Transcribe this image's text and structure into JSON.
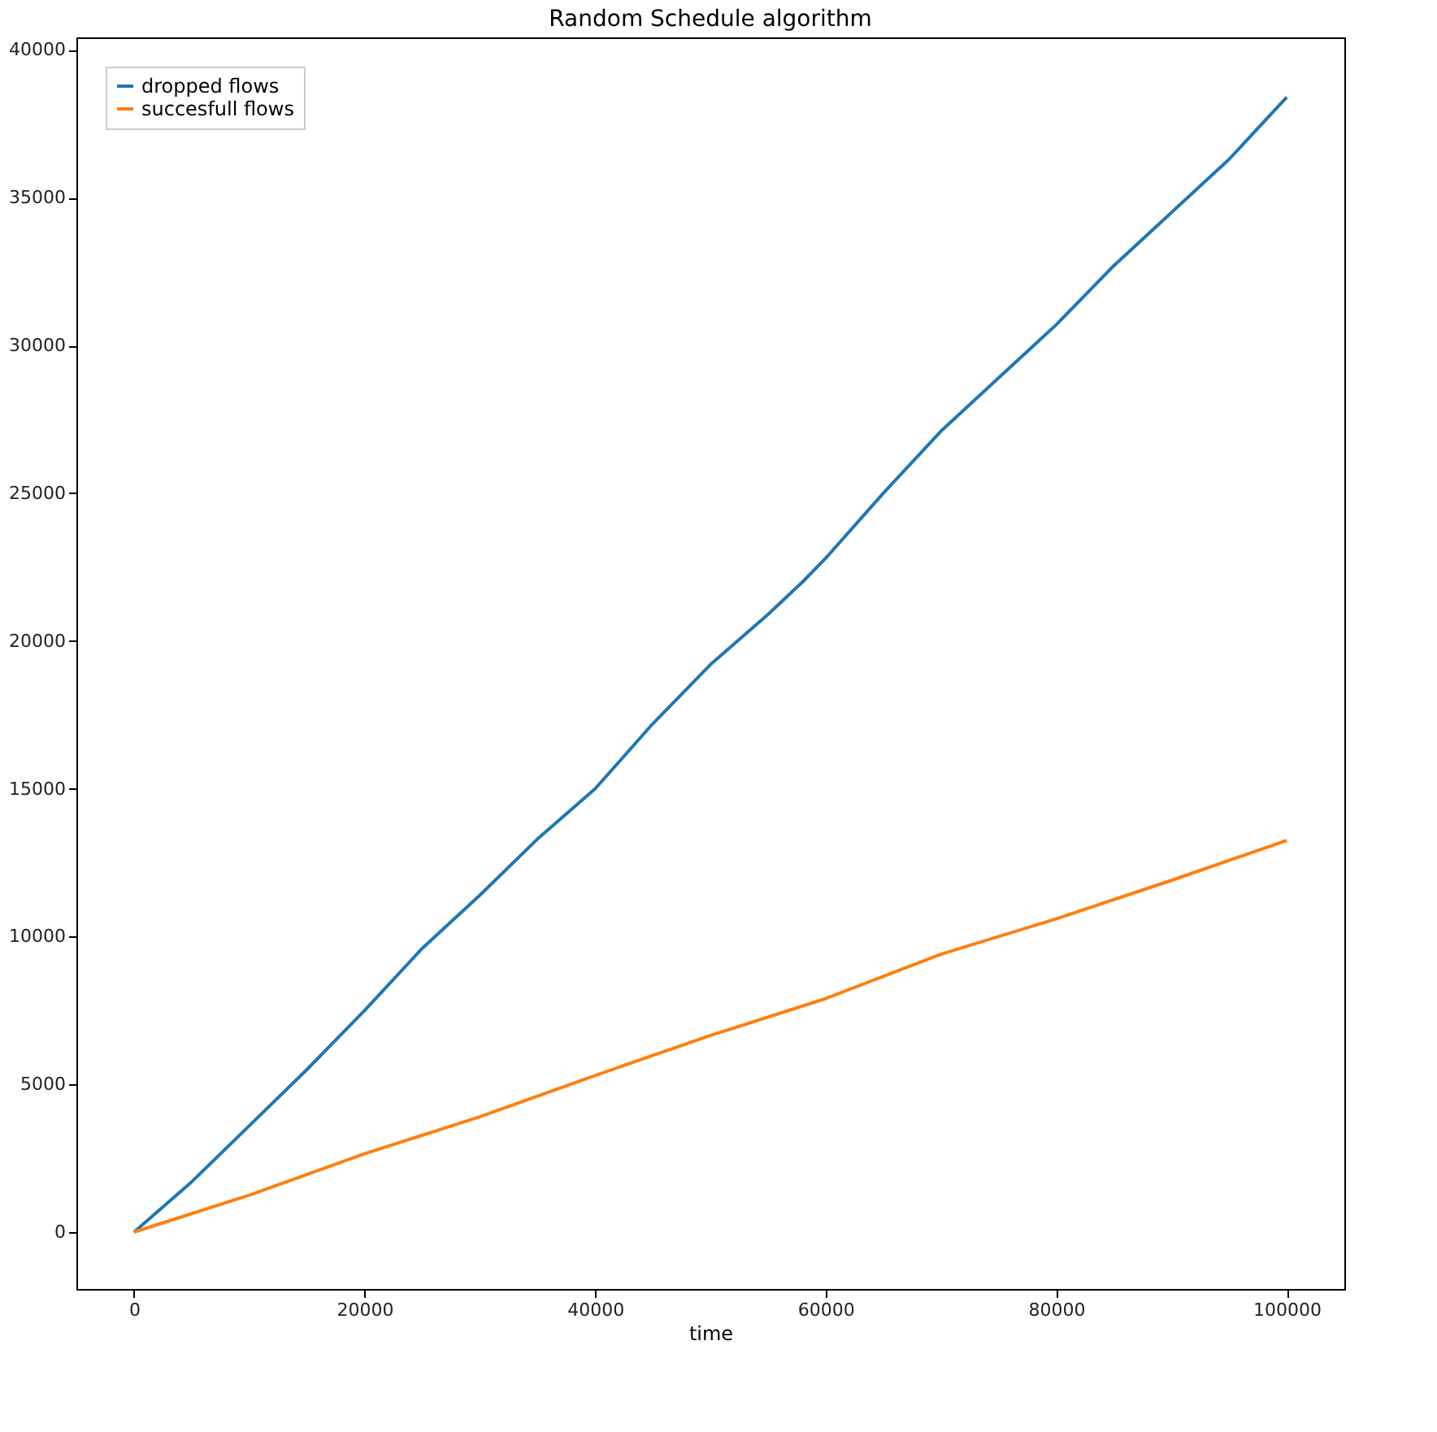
{
  "chart_data": {
    "type": "line",
    "title": "Random Schedule algorithm",
    "xlabel": "time",
    "xlim": [
      -5000,
      105000
    ],
    "ylim": [
      -1925,
      40425
    ],
    "xticks": [
      0,
      20000,
      40000,
      60000,
      80000,
      100000
    ],
    "yticks": [
      0,
      5000,
      10000,
      15000,
      20000,
      25000,
      30000,
      35000,
      40000
    ],
    "grid": false,
    "legend": "top left",
    "line_style": "solid",
    "marker": "none",
    "x": [
      0,
      5000,
      10000,
      15000,
      20000,
      25000,
      30000,
      35000,
      40000,
      45000,
      50000,
      55000,
      58000,
      60000,
      65000,
      70000,
      75000,
      80000,
      85000,
      90000,
      95000,
      100000
    ],
    "series": [
      {
        "name": "dropped flows",
        "color": "#1f77b4",
        "values": [
          0,
          1700,
          3600,
          5500,
          7500,
          9600,
          11400,
          13300,
          15000,
          17200,
          19200,
          20900,
          22000,
          22800,
          25000,
          27100,
          28900,
          30700,
          32700,
          34500,
          36300,
          38400
        ]
      },
      {
        "name": "succesfull flows",
        "color": "#ff7f0e",
        "x": [
          0,
          10000,
          20000,
          30000,
          40000,
          50000,
          60000,
          70000,
          80000,
          90000,
          100000
        ],
        "values": [
          0,
          1250,
          2650,
          3900,
          5300,
          6650,
          7900,
          9400,
          10600,
          11900,
          13250
        ]
      }
    ]
  }
}
